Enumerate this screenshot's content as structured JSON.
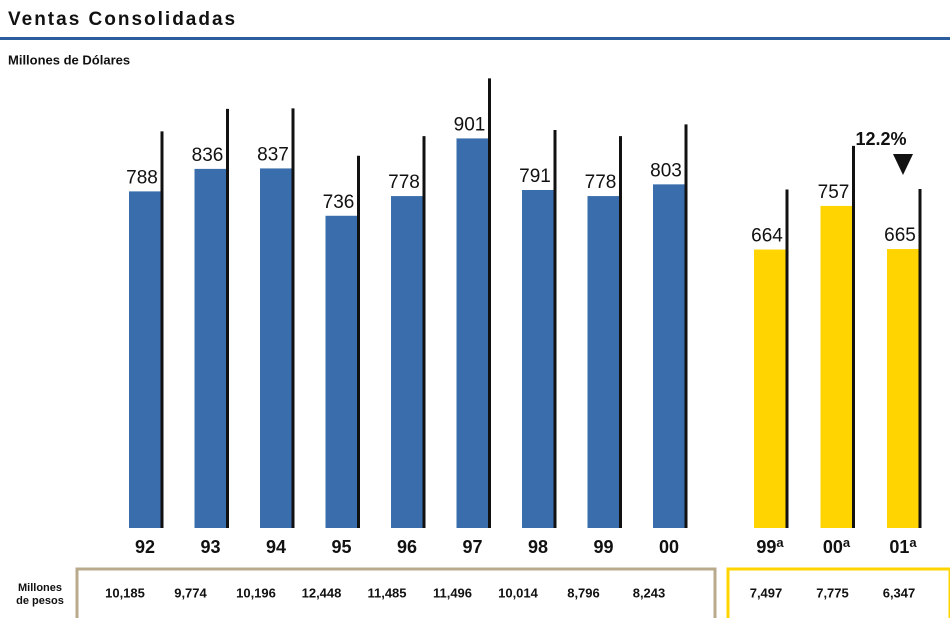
{
  "chart_data": {
    "type": "bar",
    "title": "Ventas Consolidadas",
    "subtitle": "Millones de Dólares",
    "ylim": [
      70,
      1000
    ],
    "row_label": [
      "Millones",
      "de pesos"
    ],
    "annotation": "12.2%",
    "groups": [
      {
        "color": "#3a6dab",
        "border": "#b9aa8c",
        "categories": [
          "92",
          "93",
          "94",
          "95",
          "96",
          "97",
          "98",
          "99",
          "00"
        ],
        "values": [
          788,
          836,
          837,
          736,
          778,
          901,
          791,
          778,
          803
        ],
        "pesos": [
          10185,
          9774,
          10196,
          12448,
          11485,
          11496,
          10014,
          8796,
          8243
        ],
        "pesos_labels": [
          "10,185",
          "9,774",
          "10,196",
          "12,448",
          "11,485",
          "11,496",
          "10,014",
          "8,796",
          "8,243"
        ]
      },
      {
        "color": "#ffd400",
        "border": "#ffd400",
        "note": "a",
        "categories": [
          "99",
          "00",
          "01"
        ],
        "values": [
          664,
          757,
          665
        ],
        "pesos": [
          7497,
          7775,
          6347
        ],
        "pesos_labels": [
          "7,497",
          "7,775",
          "6,347"
        ]
      }
    ]
  }
}
